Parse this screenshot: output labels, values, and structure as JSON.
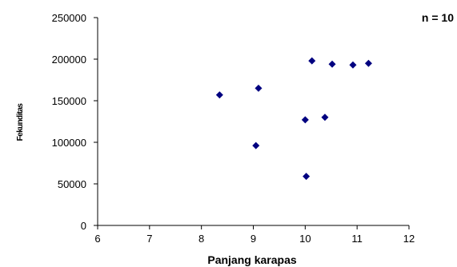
{
  "chart_data": {
    "type": "scatter",
    "title": "",
    "xlabel": "Panjang karapas",
    "ylabel": "Fekunditas",
    "annotation": "n = 10",
    "xlim": [
      6,
      12
    ],
    "ylim": [
      0,
      250000
    ],
    "x_ticks": [
      "6",
      "7",
      "8",
      "9",
      "10",
      "11",
      "12"
    ],
    "y_ticks": [
      "0",
      "50000",
      "100000",
      "150000",
      "200000",
      "250000"
    ],
    "grid": false,
    "marker": "diamond",
    "marker_color": "#000080",
    "points": [
      {
        "x": 8.35,
        "y": 157000
      },
      {
        "x": 9.05,
        "y": 96000
      },
      {
        "x": 9.1,
        "y": 165000
      },
      {
        "x": 10.0,
        "y": 127000
      },
      {
        "x": 10.02,
        "y": 59000
      },
      {
        "x": 10.13,
        "y": 198000
      },
      {
        "x": 10.38,
        "y": 130000
      },
      {
        "x": 10.52,
        "y": 194000
      },
      {
        "x": 10.92,
        "y": 193000
      },
      {
        "x": 11.22,
        "y": 195000
      }
    ]
  }
}
